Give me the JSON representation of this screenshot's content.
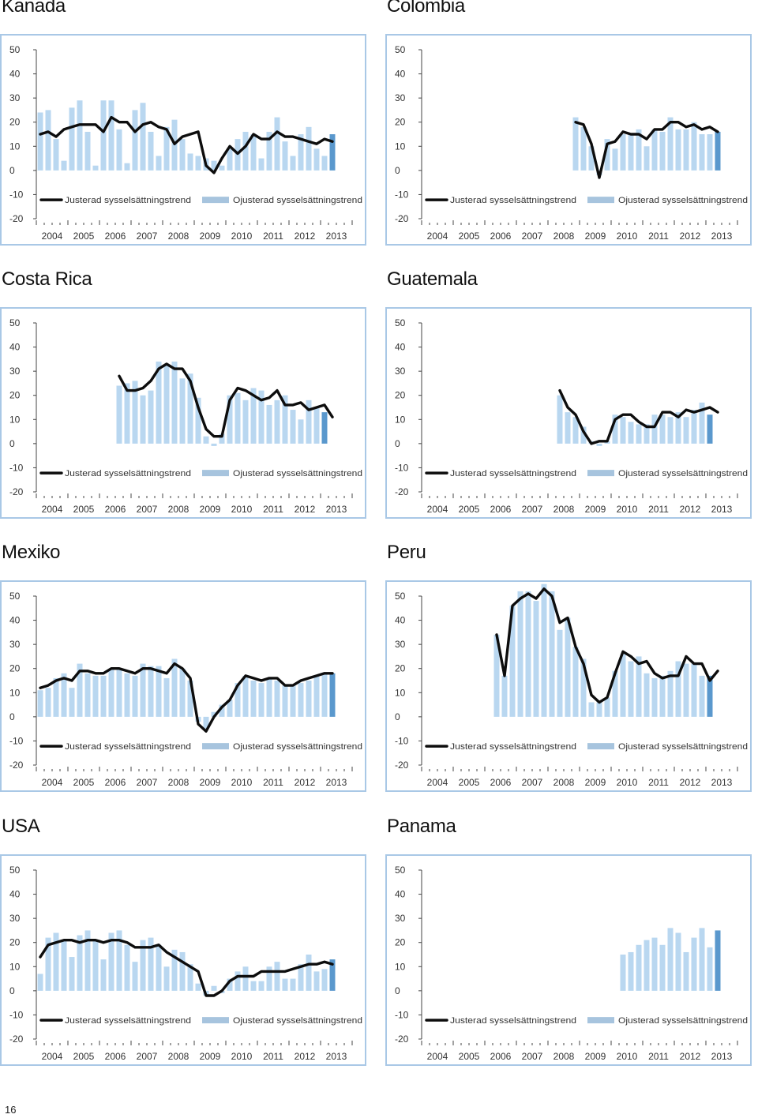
{
  "page": {
    "page_number": "16"
  },
  "colors": {
    "bar": "#b9d7f0",
    "bar_last": "#5a98cd",
    "line": "#0d0d0d",
    "frame": "#a9c8e6",
    "legend_bar": "#a7c4de"
  },
  "chart_data": [
    {
      "id": "kanada",
      "title": "Kanada",
      "type": "bar+line",
      "x": [
        "2004",
        "2005",
        "2006",
        "2007",
        "2008",
        "2009",
        "2010",
        "2011",
        "2012",
        "2013"
      ],
      "ylim": [
        -20,
        50
      ],
      "yticks": [
        "50",
        "40",
        "30",
        "20",
        "10",
        "0",
        "-10",
        "-20"
      ],
      "legend": {
        "line": "Justerad sysselsättningstrend",
        "bar": "Ojusterad sysselsättningstrend"
      },
      "bar_start": 2004.0,
      "bars": [
        24,
        25,
        13,
        4,
        26,
        29,
        16,
        2,
        29,
        29,
        17,
        3,
        25,
        28,
        16,
        6,
        18,
        21,
        13,
        7,
        6,
        5,
        4,
        2,
        9,
        13,
        16,
        15,
        5,
        16,
        22,
        12,
        6,
        15,
        18,
        9,
        6,
        15
      ],
      "line_start": 2004.0,
      "line": [
        15,
        16,
        14,
        17,
        18,
        19,
        19,
        19,
        16,
        22,
        20,
        20,
        16,
        19,
        20,
        18,
        17,
        11,
        14,
        15,
        16,
        2,
        -1,
        5,
        10,
        7,
        10,
        15,
        13,
        13,
        16,
        14,
        14,
        13,
        12,
        11,
        13,
        12
      ]
    },
    {
      "id": "colombia",
      "title": "Colombia",
      "type": "bar+line",
      "x": [
        "2004",
        "2005",
        "2006",
        "2007",
        "2008",
        "2009",
        "2010",
        "2011",
        "2012",
        "2013"
      ],
      "ylim": [
        -20,
        50
      ],
      "yticks": [
        "50",
        "40",
        "30",
        "20",
        "10",
        "0",
        "-10",
        "-20"
      ],
      "legend": {
        "line": "Justerad sysselsättningstrend",
        "bar": "Ojusterad sysselsättningstrend"
      },
      "bar_start": 2008.75,
      "bars": [
        22,
        18,
        10,
        -2,
        13,
        9,
        15,
        15,
        17,
        10,
        17,
        16,
        22,
        17,
        17,
        20,
        15,
        15,
        16
      ],
      "line_start": 2008.75,
      "line": [
        20,
        19,
        11,
        -3,
        11,
        12,
        16,
        15,
        15,
        13,
        17,
        17,
        20,
        20,
        18,
        19,
        17,
        18,
        16
      ]
    },
    {
      "id": "costa-rica",
      "title": "Costa Rica",
      "type": "bar+line",
      "x": [
        "2004",
        "2005",
        "2006",
        "2007",
        "2008",
        "2009",
        "2010",
        "2011",
        "2012",
        "2013"
      ],
      "ylim": [
        -20,
        50
      ],
      "yticks": [
        "50",
        "40",
        "30",
        "20",
        "10",
        "0",
        "-10",
        "-20"
      ],
      "legend": {
        "line": "Justerad sysselsättningstrend",
        "bar": "Ojusterad sysselsättningstrend"
      },
      "bar_start": 2006.5,
      "bars": [
        24,
        25,
        26,
        20,
        22,
        34,
        33,
        34,
        27,
        29,
        19,
        3,
        -1,
        4,
        20,
        21,
        18,
        23,
        22,
        16,
        18,
        20,
        14,
        10,
        18,
        15,
        13
      ],
      "line_start": 2006.5,
      "line": [
        28,
        22,
        22,
        23,
        26,
        31,
        33,
        31,
        31,
        26,
        15,
        6,
        3,
        3,
        18,
        23,
        22,
        20,
        18,
        19,
        22,
        16,
        16,
        17,
        14,
        15,
        16,
        11
      ]
    },
    {
      "id": "guatemala",
      "title": "Guatemala",
      "type": "bar+line",
      "x": [
        "2004",
        "2005",
        "2006",
        "2007",
        "2008",
        "2009",
        "2010",
        "2011",
        "2012",
        "2013"
      ],
      "ylim": [
        -20,
        50
      ],
      "yticks": [
        "50",
        "40",
        "30",
        "20",
        "10",
        "0",
        "-10",
        "-20"
      ],
      "legend": {
        "line": "Justerad sysselsättningstrend",
        "bar": "Ojusterad sysselsättningstrend"
      },
      "bar_start": 2008.25,
      "bars": [
        20,
        13,
        11,
        7,
        1,
        -1,
        1,
        12,
        11,
        9,
        8,
        8,
        12,
        12,
        11,
        13,
        11,
        14,
        17,
        12
      ],
      "line_start": 2008.25,
      "line": [
        22,
        15,
        12,
        5,
        0,
        1,
        1,
        10,
        12,
        12,
        9,
        7,
        7,
        13,
        13,
        11,
        14,
        13,
        14,
        15,
        13
      ]
    },
    {
      "id": "mexiko",
      "title": "Mexiko",
      "type": "bar+line",
      "x": [
        "2004",
        "2005",
        "2006",
        "2007",
        "2008",
        "2009",
        "2010",
        "2011",
        "2012",
        "2013"
      ],
      "ylim": [
        -20,
        50
      ],
      "yticks": [
        "50",
        "40",
        "30",
        "20",
        "10",
        "0",
        "-10",
        "-20"
      ],
      "legend": {
        "line": "Justerad sysselsättningstrend",
        "bar": "Ojusterad sysselsättningstrend"
      },
      "bar_start": 2004.0,
      "bars": [
        11,
        12,
        16,
        18,
        12,
        22,
        18,
        17,
        17,
        20,
        20,
        18,
        17,
        22,
        21,
        21,
        16,
        24,
        20,
        15,
        -2,
        -5,
        2,
        5,
        7,
        14,
        17,
        15,
        14,
        16,
        15,
        13,
        13,
        14,
        15,
        17,
        18,
        18
      ],
      "line_start": 2004.0,
      "line": [
        12,
        13,
        15,
        16,
        15,
        19,
        19,
        18,
        18,
        20,
        20,
        19,
        18,
        20,
        20,
        19,
        18,
        22,
        20,
        16,
        -3,
        -6,
        0,
        4,
        7,
        13,
        17,
        16,
        15,
        16,
        16,
        13,
        13,
        15,
        16,
        17,
        18,
        18
      ]
    },
    {
      "id": "peru",
      "title": "Peru",
      "type": "bar+line",
      "x": [
        "2004",
        "2005",
        "2006",
        "2007",
        "2008",
        "2009",
        "2010",
        "2011",
        "2012",
        "2013"
      ],
      "ylim": [
        -20,
        50
      ],
      "yticks": [
        "50",
        "40",
        "30",
        "20",
        "10",
        "0",
        "-10",
        "-20"
      ],
      "legend": {
        "line": "Justerad sysselsättningstrend",
        "bar": "Ojusterad sysselsättningstrend"
      },
      "bar_start": 2006.25,
      "bars": [
        34,
        17,
        46,
        52,
        52,
        48,
        55,
        52,
        36,
        41,
        29,
        24,
        6,
        6,
        8,
        19,
        26,
        23,
        25,
        18,
        16,
        17,
        19,
        23,
        22,
        22,
        17,
        17
      ],
      "line_start": 2006.25,
      "line": [
        34,
        17,
        46,
        49,
        51,
        49,
        53,
        50,
        39,
        41,
        29,
        22,
        9,
        6,
        8,
        18,
        27,
        25,
        22,
        23,
        18,
        16,
        17,
        17,
        25,
        22,
        22,
        15,
        19
      ]
    },
    {
      "id": "usa",
      "title": "USA",
      "type": "bar+line",
      "x": [
        "2004",
        "2005",
        "2006",
        "2007",
        "2008",
        "2009",
        "2010",
        "2011",
        "2012",
        "2013"
      ],
      "ylim": [
        -20,
        50
      ],
      "yticks": [
        "50",
        "40",
        "30",
        "20",
        "10",
        "0",
        "-10",
        "-20"
      ],
      "legend": {
        "line": "Justerad sysselsättningstrend",
        "bar": "Ojusterad sysselsättningstrend"
      },
      "bar_start": 2004.0,
      "bars": [
        7,
        22,
        24,
        21,
        14,
        23,
        25,
        21,
        13,
        24,
        25,
        19,
        12,
        21,
        22,
        19,
        10,
        17,
        16,
        11,
        3,
        -2,
        2,
        -1,
        5,
        8,
        10,
        4,
        4,
        10,
        12,
        5,
        5,
        11,
        15,
        8,
        9,
        13
      ],
      "line_start": 2004.0,
      "line": [
        14,
        19,
        20,
        21,
        21,
        20,
        21,
        21,
        20,
        21,
        21,
        20,
        18,
        18,
        18,
        19,
        16,
        14,
        12,
        10,
        8,
        -2,
        -2,
        0,
        4,
        6,
        6,
        6,
        8,
        8,
        8,
        8,
        9,
        10,
        11,
        11,
        12,
        11
      ]
    },
    {
      "id": "panama",
      "title": "Panama",
      "type": "bar",
      "x": [
        "2004",
        "2005",
        "2006",
        "2007",
        "2008",
        "2009",
        "2010",
        "2011",
        "2012",
        "2013"
      ],
      "ylim": [
        -20,
        50
      ],
      "yticks": [
        "50",
        "40",
        "30",
        "20",
        "10",
        "0",
        "-10",
        "-20"
      ],
      "legend": {
        "line": "Justerad sysselsättningstrend",
        "bar": "Ojusterad sysselsättningstrend"
      },
      "bar_start": 2010.25,
      "bars": [
        15,
        16,
        19,
        21,
        22,
        19,
        26,
        24,
        16,
        22,
        26,
        18,
        25
      ],
      "line_start": 2010.25,
      "line": []
    }
  ]
}
